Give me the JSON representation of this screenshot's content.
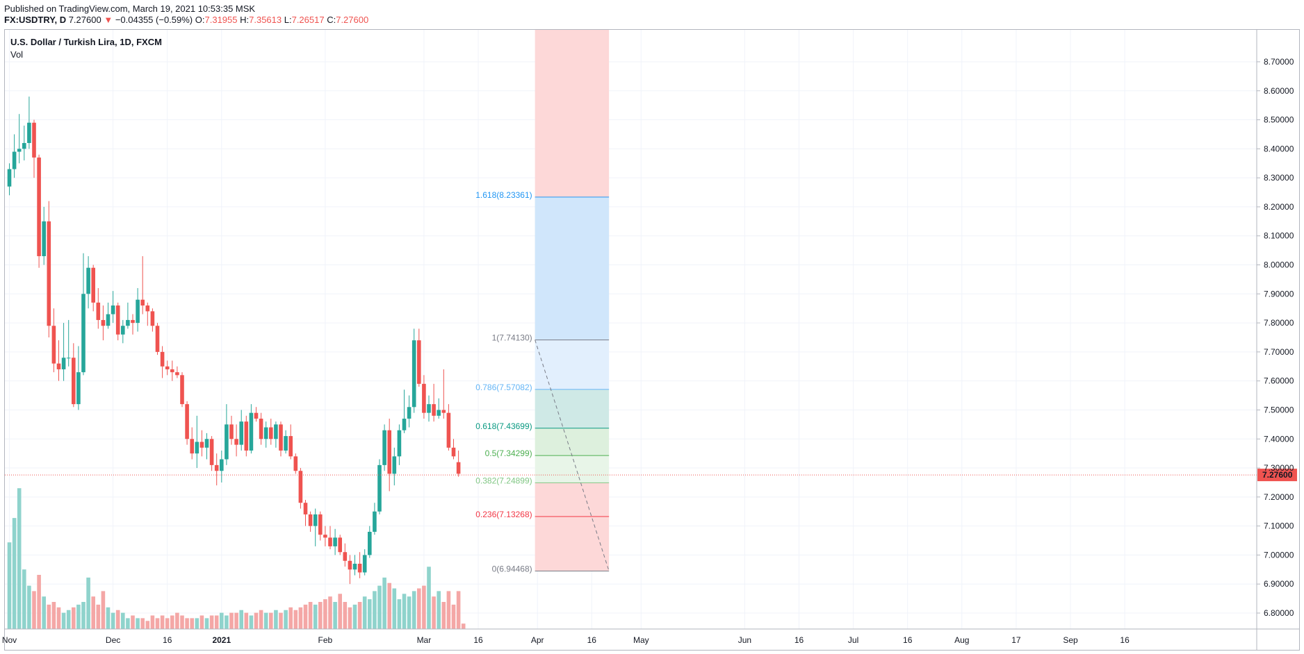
{
  "header": {
    "published": "Published on TradingView.com, March 19, 2021 10:53:35 MSK",
    "symbol": "FX:USDTRY, D",
    "last": "7.27600",
    "change_arrow": "▼",
    "change": "−0.04355 (−0.59%)",
    "o_label": "O:",
    "o_value": "7.31955",
    "h_label": "H:",
    "h_value": "7.35613",
    "l_label": "L:",
    "l_value": "7.26517",
    "c_label": "C:",
    "c_value": "7.27600"
  },
  "legend": {
    "title": "U.S. Dollar / Turkish Lira, 1D, FXCM",
    "volume": "Vol"
  },
  "colors": {
    "up": "#26a69a",
    "down": "#ef5350",
    "up_vol": "#8fd3cc",
    "down_vol": "#f4a7a6",
    "price_line": "#ef5350",
    "grid": "#f0f3fa"
  },
  "chart_data": {
    "type": "candlestick",
    "symbol": "USDTRY",
    "timeframe": "1D",
    "y_axis": {
      "ticks": [
        "8.70000",
        "8.60000",
        "8.50000",
        "8.40000",
        "8.30000",
        "8.20000",
        "8.10000",
        "8.00000",
        "7.90000",
        "7.80000",
        "7.70000",
        "7.60000",
        "7.50000",
        "7.40000",
        "7.30000",
        "7.20000",
        "7.10000",
        "7.00000",
        "6.90000",
        "6.80000"
      ],
      "range": [
        6.745,
        8.81
      ]
    },
    "x_axis": {
      "ticks": [
        {
          "label": "Nov",
          "bold": false,
          "idx": 0
        },
        {
          "label": "Dec",
          "bold": false,
          "idx": 21
        },
        {
          "label": "16",
          "bold": false,
          "idx": 32
        },
        {
          "label": "2021",
          "bold": true,
          "idx": 43
        },
        {
          "label": "Feb",
          "bold": false,
          "idx": 64
        },
        {
          "label": "Mar",
          "bold": false,
          "idx": 84
        },
        {
          "label": "16",
          "bold": false,
          "idx": 95
        },
        {
          "label": "Apr",
          "bold": false,
          "idx": 107
        },
        {
          "label": "16",
          "bold": false,
          "idx": 118
        },
        {
          "label": "May",
          "bold": false,
          "idx": 128
        },
        {
          "label": "Jun",
          "bold": false,
          "idx": 149
        },
        {
          "label": "16",
          "bold": false,
          "idx": 160
        },
        {
          "label": "Jul",
          "bold": false,
          "idx": 171
        },
        {
          "label": "16",
          "bold": false,
          "idx": 182
        },
        {
          "label": "Aug",
          "bold": false,
          "idx": 193
        },
        {
          "label": "17",
          "bold": false,
          "idx": 204
        },
        {
          "label": "Sep",
          "bold": false,
          "idx": 215
        },
        {
          "label": "16",
          "bold": false,
          "idx": 226
        }
      ]
    },
    "last_price": "7.27600",
    "last_price_value": 7.276,
    "candles": [
      [
        8.27,
        8.35,
        8.24,
        8.33
      ],
      [
        8.33,
        8.45,
        8.3,
        8.39
      ],
      [
        8.39,
        8.52,
        8.35,
        8.4
      ],
      [
        8.4,
        8.48,
        8.36,
        8.42
      ],
      [
        8.42,
        8.58,
        8.4,
        8.49
      ],
      [
        8.49,
        8.5,
        8.3,
        8.37
      ],
      [
        8.37,
        8.38,
        7.99,
        8.03
      ],
      [
        8.03,
        8.2,
        8.0,
        8.15
      ],
      [
        8.15,
        8.22,
        7.75,
        7.79
      ],
      [
        7.79,
        7.85,
        7.63,
        7.66
      ],
      [
        7.66,
        7.74,
        7.6,
        7.64
      ],
      [
        7.64,
        7.8,
        7.6,
        7.68
      ],
      [
        7.68,
        7.81,
        7.65,
        7.68
      ],
      [
        7.68,
        7.73,
        7.51,
        7.52
      ],
      [
        7.52,
        7.72,
        7.5,
        7.63
      ],
      [
        7.63,
        8.04,
        7.62,
        7.9
      ],
      [
        7.9,
        8.03,
        7.85,
        7.99
      ],
      [
        7.99,
        8.0,
        7.84,
        7.87
      ],
      [
        7.87,
        7.92,
        7.78,
        7.81
      ],
      [
        7.81,
        7.86,
        7.74,
        7.79
      ],
      [
        7.79,
        7.87,
        7.78,
        7.83
      ],
      [
        7.83,
        7.91,
        7.8,
        7.86
      ],
      [
        7.86,
        7.87,
        7.74,
        7.76
      ],
      [
        7.76,
        7.81,
        7.73,
        7.79
      ],
      [
        7.79,
        7.87,
        7.78,
        7.81
      ],
      [
        7.81,
        7.83,
        7.76,
        7.8
      ],
      [
        7.8,
        7.92,
        7.77,
        7.88
      ],
      [
        7.88,
        8.03,
        7.83,
        7.86
      ],
      [
        7.86,
        7.87,
        7.79,
        7.84
      ],
      [
        7.84,
        7.85,
        7.77,
        7.79
      ],
      [
        7.79,
        7.8,
        7.69,
        7.7
      ],
      [
        7.7,
        7.72,
        7.61,
        7.65
      ],
      [
        7.65,
        7.67,
        7.62,
        7.64
      ],
      [
        7.64,
        7.67,
        7.6,
        7.63
      ],
      [
        7.63,
        7.65,
        7.61,
        7.62
      ],
      [
        7.62,
        7.63,
        7.51,
        7.52
      ],
      [
        7.52,
        7.53,
        7.38,
        7.4
      ],
      [
        7.4,
        7.44,
        7.33,
        7.35
      ],
      [
        7.35,
        7.48,
        7.3,
        7.39
      ],
      [
        7.39,
        7.43,
        7.34,
        7.37
      ],
      [
        7.37,
        7.42,
        7.33,
        7.4
      ],
      [
        7.4,
        7.41,
        7.29,
        7.31
      ],
      [
        7.31,
        7.35,
        7.24,
        7.29
      ],
      [
        7.29,
        7.36,
        7.25,
        7.33
      ],
      [
        7.33,
        7.52,
        7.31,
        7.45
      ],
      [
        7.45,
        7.48,
        7.38,
        7.4
      ],
      [
        7.4,
        7.45,
        7.34,
        7.38
      ],
      [
        7.38,
        7.5,
        7.36,
        7.46
      ],
      [
        7.46,
        7.48,
        7.34,
        7.36
      ],
      [
        7.36,
        7.52,
        7.35,
        7.49
      ],
      [
        7.49,
        7.51,
        7.46,
        7.47
      ],
      [
        7.47,
        7.49,
        7.38,
        7.4
      ],
      [
        7.4,
        7.46,
        7.37,
        7.44
      ],
      [
        7.44,
        7.47,
        7.38,
        7.4
      ],
      [
        7.4,
        7.46,
        7.37,
        7.45
      ],
      [
        7.45,
        7.46,
        7.34,
        7.36
      ],
      [
        7.36,
        7.43,
        7.35,
        7.41
      ],
      [
        7.41,
        7.45,
        7.33,
        7.34
      ],
      [
        7.34,
        7.35,
        7.28,
        7.29
      ],
      [
        7.29,
        7.3,
        7.16,
        7.18
      ],
      [
        7.18,
        7.19,
        7.1,
        7.14
      ],
      [
        7.14,
        7.15,
        7.08,
        7.1
      ],
      [
        7.1,
        7.16,
        7.03,
        7.14
      ],
      [
        7.14,
        7.15,
        7.05,
        7.07
      ],
      [
        7.07,
        7.1,
        7.03,
        7.06
      ],
      [
        7.06,
        7.1,
        7.02,
        7.03
      ],
      [
        7.03,
        7.09,
        7.0,
        7.06
      ],
      [
        7.06,
        7.07,
        7.0,
        7.01
      ],
      [
        7.01,
        7.04,
        6.96,
        6.98
      ],
      [
        6.98,
        7.0,
        6.9,
        6.95
      ],
      [
        6.95,
        7.0,
        6.93,
        6.97
      ],
      [
        6.97,
        7.01,
        6.92,
        6.94
      ],
      [
        6.94,
        7.02,
        6.93,
        7.0
      ],
      [
        7.0,
        7.1,
        6.99,
        7.08
      ],
      [
        7.08,
        7.18,
        7.07,
        7.15
      ],
      [
        7.15,
        7.33,
        7.14,
        7.31
      ],
      [
        7.31,
        7.45,
        7.29,
        7.43
      ],
      [
        7.43,
        7.47,
        7.22,
        7.28
      ],
      [
        7.28,
        7.37,
        7.24,
        7.34
      ],
      [
        7.34,
        7.45,
        7.31,
        7.43
      ],
      [
        7.43,
        7.57,
        7.42,
        7.47
      ],
      [
        7.47,
        7.55,
        7.44,
        7.51
      ],
      [
        7.51,
        7.78,
        7.49,
        7.74
      ],
      [
        7.74,
        7.78,
        7.58,
        7.59
      ],
      [
        7.59,
        7.62,
        7.47,
        7.49
      ],
      [
        7.49,
        7.55,
        7.46,
        7.52
      ],
      [
        7.52,
        7.59,
        7.46,
        7.48
      ],
      [
        7.48,
        7.54,
        7.47,
        7.5
      ],
      [
        7.5,
        7.64,
        7.47,
        7.49
      ],
      [
        7.49,
        7.52,
        7.36,
        7.37
      ],
      [
        7.37,
        7.4,
        7.33,
        7.34
      ],
      [
        7.32,
        7.36,
        7.27,
        7.28
      ]
    ],
    "volume": {
      "range_max": 0.6,
      "values": [
        0.32,
        0.41,
        0.52,
        0.22,
        0.16,
        0.14,
        0.2,
        0.12,
        0.09,
        0.1,
        0.08,
        0.06,
        0.07,
        0.08,
        0.09,
        0.1,
        0.19,
        0.12,
        0.09,
        0.14,
        0.08,
        0.06,
        0.07,
        0.06,
        0.04,
        0.05,
        0.04,
        0.04,
        0.03,
        0.05,
        0.04,
        0.05,
        0.04,
        0.05,
        0.06,
        0.05,
        0.04,
        0.04,
        0.04,
        0.05,
        0.04,
        0.05,
        0.05,
        0.06,
        0.05,
        0.06,
        0.06,
        0.07,
        0.06,
        0.05,
        0.06,
        0.07,
        0.06,
        0.06,
        0.07,
        0.06,
        0.07,
        0.08,
        0.07,
        0.08,
        0.09,
        0.1,
        0.09,
        0.1,
        0.11,
        0.12,
        0.1,
        0.13,
        0.1,
        0.08,
        0.09,
        0.1,
        0.12,
        0.11,
        0.14,
        0.16,
        0.19,
        0.17,
        0.15,
        0.11,
        0.13,
        0.12,
        0.14,
        0.15,
        0.16,
        0.23,
        0.12,
        0.14,
        0.1,
        0.14,
        0.09,
        0.14,
        0.02
      ]
    },
    "fibonacci": {
      "start_idx": 106.5,
      "end_idx": 121.5,
      "levels": [
        {
          "ratio": 1.618,
          "label": "1.618(8.23361)",
          "price": 8.23361,
          "color": "#2196f3",
          "fill": "#d0e6fb"
        },
        {
          "ratio": 1,
          "label": "1(7.74130)",
          "price": 7.7413,
          "color": "#787b86",
          "fill": "#e6e6e6"
        },
        {
          "ratio": 0.786,
          "label": "0.786(7.57082)",
          "price": 7.57082,
          "color": "#64b5f6",
          "fill": "#e2effd"
        },
        {
          "ratio": 0.618,
          "label": "0.618(7.43699)",
          "price": 7.43699,
          "color": "#089981",
          "fill": "#cfe9e6"
        },
        {
          "ratio": 0.5,
          "label": "0.5(7.34299)",
          "price": 7.34299,
          "color": "#4caf50",
          "fill": "#ddf0dd"
        },
        {
          "ratio": 0.382,
          "label": "0.382(7.24899)",
          "price": 7.24899,
          "color": "#81c784",
          "fill": "#e8f5e8"
        },
        {
          "ratio": 0.236,
          "label": "0.236(7.13268)",
          "price": 7.13268,
          "color": "#f23645",
          "fill": "#fdd8d8"
        },
        {
          "ratio": 0,
          "label": "0(6.94468)",
          "price": 6.94468,
          "color": "#787b86",
          "fill": "#fdd8d8"
        }
      ],
      "top_extent": 8.81,
      "top_fill": "#fdd8d8",
      "trend_from": 7.7413,
      "trend_to": 6.94468
    }
  }
}
